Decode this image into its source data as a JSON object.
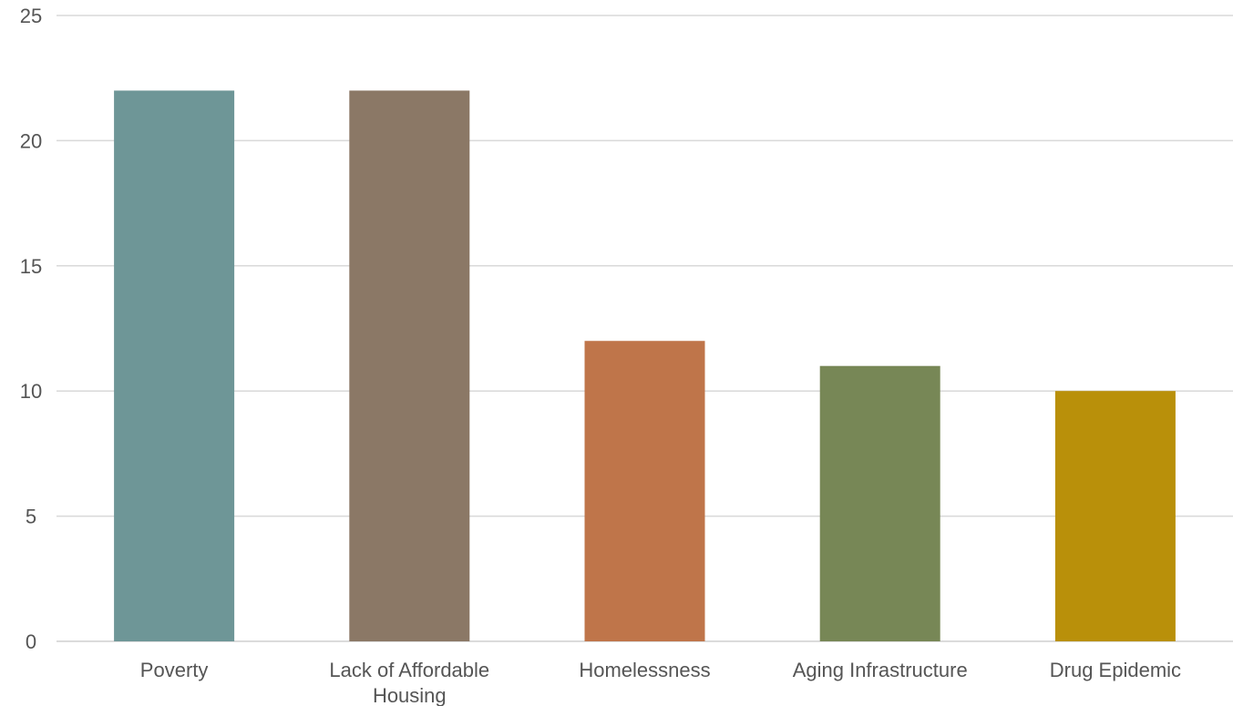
{
  "chart_data": {
    "type": "bar",
    "title": "",
    "xlabel": "",
    "ylabel": "",
    "ylim": [
      0,
      25
    ],
    "yticks": [
      0,
      5,
      10,
      15,
      20,
      25
    ],
    "grid": true,
    "legend": "none",
    "categories": [
      [
        "Poverty"
      ],
      [
        "Lack of Affordable",
        "Housing"
      ],
      [
        "Homelessness"
      ],
      [
        "Aging Infrastructure"
      ],
      [
        "Drug Epidemic"
      ]
    ],
    "values": [
      22,
      22,
      12,
      11,
      10
    ],
    "colors": [
      "#6e9697",
      "#8b7866",
      "#bf754a",
      "#778756",
      "#b9900a"
    ]
  }
}
